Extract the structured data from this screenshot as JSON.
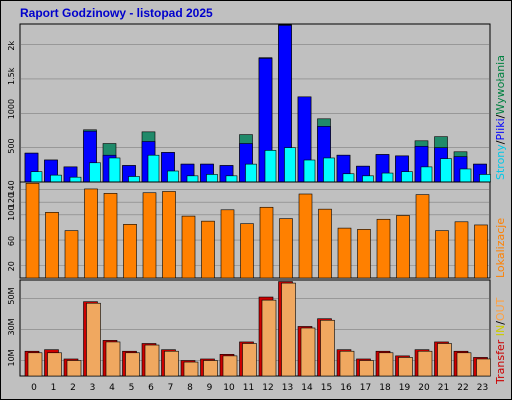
{
  "title": "Raport Godzinowy -  listopad 2025",
  "hours": [
    "0",
    "1",
    "2",
    "3",
    "4",
    "5",
    "6",
    "7",
    "8",
    "9",
    "10",
    "11",
    "12",
    "13",
    "14",
    "15",
    "16",
    "17",
    "18",
    "19",
    "20",
    "21",
    "22",
    "23"
  ],
  "panel1_label": {
    "part1": "Strony",
    "sep1": "/",
    "part2": "Pliki",
    "sep2": "/",
    "part3": "Wywołania",
    "colors": {
      "part1": "#00c8e8",
      "sep": "#000000",
      "part2": "#0000ff",
      "part3": "#008040"
    }
  },
  "panel2_label": {
    "text": "Lokalizacje",
    "color": "#ff8000"
  },
  "panel3_label": {
    "part1": "Transfer",
    "part2": "IN",
    "sep": "/",
    "part3": "OUT",
    "colors": {
      "part1": "#cc0000",
      "part2": "#cccc00",
      "sep": "#000000",
      "part3": "#ffa040"
    }
  },
  "colors": {
    "background": "#c0c0c0",
    "hits": "#208a6a",
    "files": "#0000ff",
    "pages": "#00ffff",
    "visits": "#ff8000",
    "in": "#cc0000",
    "out": "#f0a860"
  },
  "chart_data": [
    {
      "type": "bar",
      "categories": [
        "0",
        "1",
        "2",
        "3",
        "4",
        "5",
        "6",
        "7",
        "8",
        "9",
        "10",
        "11",
        "12",
        "13",
        "14",
        "15",
        "16",
        "17",
        "18",
        "19",
        "20",
        "21",
        "22",
        "23"
      ],
      "ylim": [
        0,
        2300
      ],
      "yticks": [
        "500",
        "1000",
        "1.5k",
        "2k"
      ],
      "ytick_values": [
        500,
        1000,
        1500,
        2000
      ],
      "series": [
        {
          "name": "Wywołania",
          "values": [
            420,
            320,
            220,
            760,
            560,
            240,
            730,
            430,
            260,
            260,
            240,
            690,
            1810,
            2290,
            1240,
            920,
            390,
            230,
            400,
            380,
            600,
            660,
            440,
            260
          ]
        },
        {
          "name": "Pliki",
          "values": [
            420,
            320,
            220,
            740,
            390,
            240,
            590,
            430,
            260,
            260,
            240,
            560,
            1800,
            2280,
            1240,
            810,
            390,
            230,
            400,
            380,
            520,
            500,
            370,
            260
          ]
        },
        {
          "name": "Strony",
          "values": [
            150,
            100,
            70,
            280,
            350,
            80,
            390,
            160,
            90,
            110,
            90,
            260,
            460,
            500,
            320,
            350,
            120,
            90,
            130,
            150,
            220,
            340,
            190,
            110
          ]
        }
      ]
    },
    {
      "type": "bar",
      "categories": [
        "0",
        "1",
        "2",
        "3",
        "4",
        "5",
        "6",
        "7",
        "8",
        "9",
        "10",
        "11",
        "12",
        "13",
        "14",
        "15",
        "16",
        "17",
        "18",
        "19",
        "20",
        "21",
        "22",
        "23"
      ],
      "ylim": [
        0,
        152
      ],
      "yticks": [
        "20",
        "60",
        "100",
        "120",
        "140"
      ],
      "ytick_values": [
        20,
        60,
        100,
        120,
        140
      ],
      "series": [
        {
          "name": "Lokalizacje",
          "values": [
            150,
            104,
            75,
            141,
            134,
            85,
            135,
            137,
            98,
            90,
            108,
            86,
            112,
            94,
            133,
            109,
            79,
            77,
            93,
            99,
            132,
            75,
            89,
            84
          ]
        }
      ]
    },
    {
      "type": "bar",
      "categories": [
        "0",
        "1",
        "2",
        "3",
        "4",
        "5",
        "6",
        "7",
        "8",
        "9",
        "10",
        "11",
        "12",
        "13",
        "14",
        "15",
        "16",
        "17",
        "18",
        "19",
        "20",
        "21",
        "22",
        "23"
      ],
      "ylim": [
        0,
        62
      ],
      "yticks": [
        "10M",
        "30M",
        "50M"
      ],
      "ytick_values": [
        10,
        30,
        50
      ],
      "series": [
        {
          "name": "IN",
          "values": [
            16,
            17,
            11,
            48,
            23,
            16,
            21,
            17,
            10,
            11,
            14,
            22,
            51,
            61,
            32,
            37,
            17,
            11,
            16,
            13,
            17,
            22,
            16,
            12
          ]
        },
        {
          "name": "OUT",
          "values": [
            15,
            15,
            10,
            47,
            22,
            15,
            20,
            16,
            9,
            10,
            13,
            21,
            49,
            60,
            31,
            36,
            16,
            10,
            15,
            12,
            16,
            21,
            15,
            11
          ]
        }
      ]
    }
  ]
}
